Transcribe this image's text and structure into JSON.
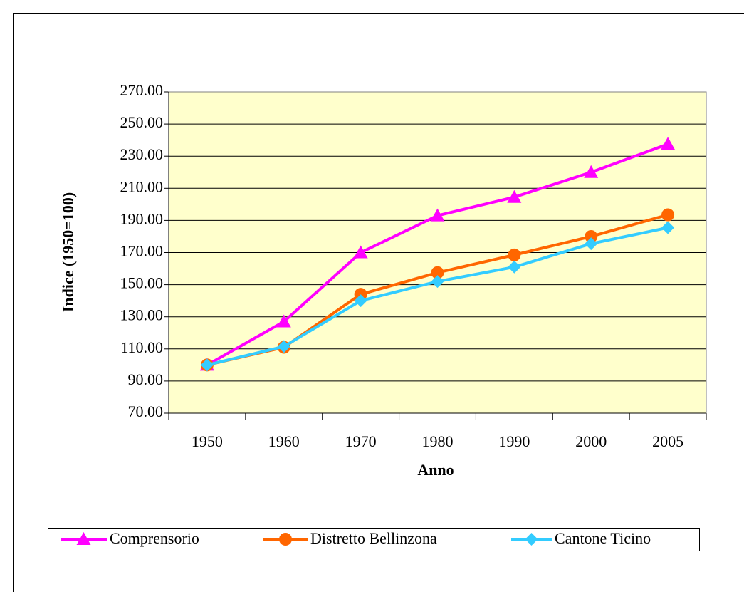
{
  "chart_data": {
    "type": "line",
    "xlabel": "Anno",
    "ylabel": "Indice (1950=100)",
    "categories": [
      "1950",
      "1960",
      "1970",
      "1980",
      "1990",
      "2000",
      "2005"
    ],
    "series": [
      {
        "name": "Comprensorio",
        "color": "#ff00ff",
        "marker": "triangle",
        "values": [
          100,
          127,
          170,
          193,
          204.5,
          220,
          237.5
        ]
      },
      {
        "name": "Distretto Bellinzona",
        "color": "#ff6600",
        "marker": "circle",
        "values": [
          100,
          111,
          144,
          157.5,
          168.5,
          180,
          193.5
        ]
      },
      {
        "name": "Cantone Ticino",
        "color": "#33ccff",
        "marker": "diamond",
        "values": [
          100,
          111.5,
          140,
          152,
          161,
          175.5,
          185.5
        ]
      }
    ],
    "ylim": [
      70,
      270
    ],
    "yticks": [
      {
        "value": 70,
        "label": "70.00"
      },
      {
        "value": 90,
        "label": "90.00"
      },
      {
        "value": 110,
        "label": "110.00"
      },
      {
        "value": 130,
        "label": "130.00"
      },
      {
        "value": 150,
        "label": "150.00"
      },
      {
        "value": 170,
        "label": "170.00"
      },
      {
        "value": 190,
        "label": "190.00"
      },
      {
        "value": 210,
        "label": "210.00"
      },
      {
        "value": 230,
        "label": "230.00"
      },
      {
        "value": 250,
        "label": "250.00"
      },
      {
        "value": 270,
        "label": "270.00"
      }
    ],
    "grid": true,
    "plot_background": "#ffffcc",
    "legend": "bottom"
  }
}
